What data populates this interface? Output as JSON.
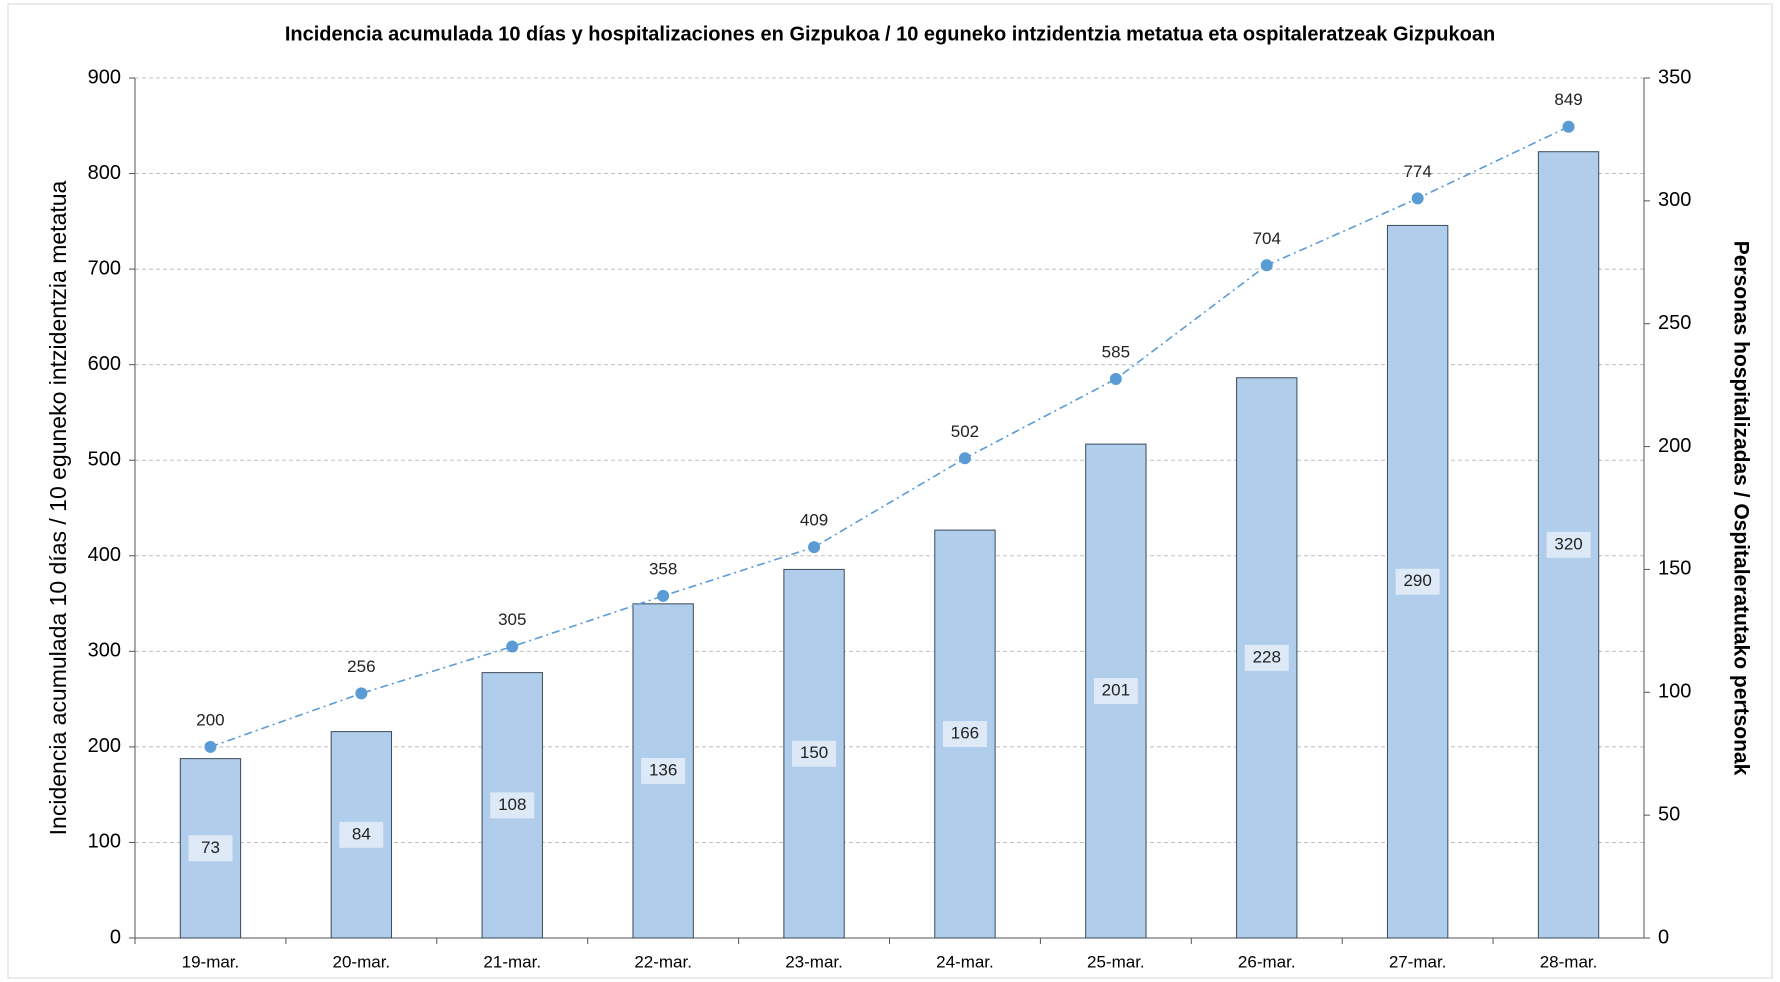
{
  "chart_data": {
    "type": "bar",
    "title": "Incidencia acumulada 10 días y hospitalizaciones en Gizpukoa / 10 eguneko intzidentzia metatua eta ospitaleratzeak Gizpukoan",
    "y_label": "Incidencia acumulada 10 días / 10 eguneko intzidentzia metatua",
    "y2_label": "Personas hospitalizadas / Ospitaleratutako pertsonak",
    "categories": [
      "19-mar.",
      "20-mar.",
      "21-mar.",
      "22-mar.",
      "23-mar.",
      "24-mar.",
      "25-mar.",
      "26-mar.",
      "27-mar.",
      "28-mar."
    ],
    "series": [
      {
        "type": "bar",
        "axis": "y2",
        "color": "#b0cdeb",
        "values": [
          73,
          84,
          108,
          136,
          150,
          166,
          201,
          228,
          290,
          320
        ]
      },
      {
        "type": "line",
        "axis": "y",
        "color": "#5b9bd5",
        "values": [
          200,
          256,
          305,
          358,
          409,
          502,
          585,
          704,
          774,
          849
        ]
      }
    ],
    "ylim": [
      0,
      900
    ],
    "yticks": [
      0,
      100,
      200,
      300,
      400,
      500,
      600,
      700,
      800,
      900
    ],
    "y2lim": [
      0,
      350
    ],
    "y2ticks": [
      0,
      50,
      100,
      150,
      200,
      250,
      300,
      350
    ],
    "grid": true
  }
}
